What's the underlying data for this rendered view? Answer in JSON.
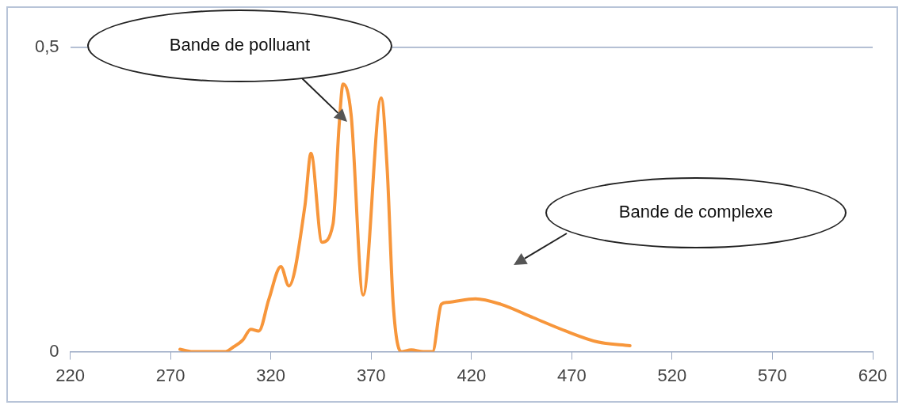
{
  "chart_data": {
    "type": "line",
    "x": [
      274.7,
      281,
      297,
      301,
      306,
      310,
      314,
      319,
      325,
      329,
      337,
      340,
      345.5,
      351,
      354,
      356,
      360,
      366,
      375,
      378,
      381,
      385,
      390,
      396,
      400.6,
      405,
      408,
      422,
      434.6,
      450.8,
      467,
      483,
      499
    ],
    "series": [
      {
        "color": "#f7963b",
        "values": [
          0.004,
          0,
          0,
          0.007,
          0.019,
          0.037,
          0.034,
          0.086,
          0.14,
          0.108,
          0.24,
          0.326,
          0.18,
          0.21,
          0.37,
          0.44,
          0.39,
          0.093,
          0.417,
          0.3,
          0.078,
          0,
          0.003,
          0,
          0,
          0.078,
          0.081,
          0.087,
          0.078,
          0.056,
          0.034,
          0.016,
          0.01
        ]
      }
    ],
    "xlim": [
      220,
      620
    ],
    "xticks": [
      220,
      270,
      320,
      370,
      420,
      470,
      520,
      570,
      620
    ],
    "ylim": [
      0,
      0.5
    ],
    "yticks": [
      0,
      {
        "value": 0.5,
        "label": "0,5"
      }
    ],
    "grid": "y",
    "legend": false,
    "marker": "none",
    "line_style": "solid",
    "annotations": [
      "Bande de polluant",
      "Bande de complexe"
    ]
  }
}
